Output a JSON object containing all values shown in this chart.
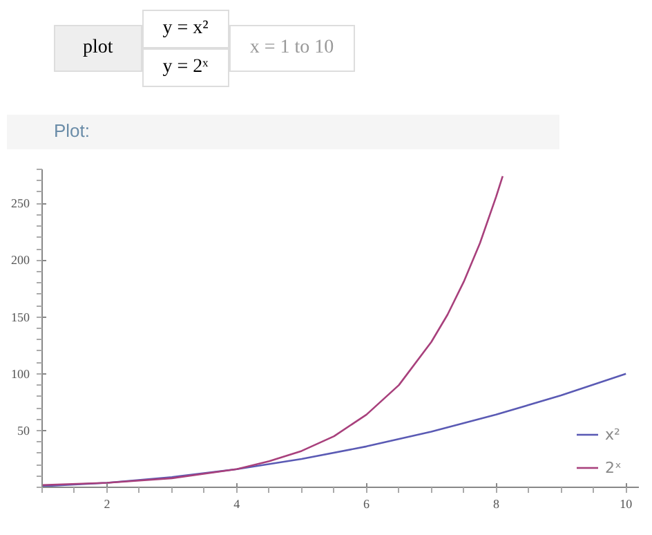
{
  "chart_data": {
    "type": "line",
    "title": "Plot:",
    "annotations": [
      "plot",
      "y = x²",
      "y = 2ˣ",
      "x = 1 to 10"
    ],
    "xlim": [
      1,
      10.2
    ],
    "ylim": [
      0,
      280
    ],
    "xticks": [
      2,
      4,
      6,
      8,
      10
    ],
    "yticks": [
      50,
      100,
      150,
      200,
      250
    ],
    "grid": false,
    "legend": "right",
    "marker": "none",
    "line_style": "solid",
    "series": [
      {
        "name": "x²",
        "color": "#5a5ab4",
        "x": [
          1,
          2,
          3,
          4,
          5,
          6,
          7,
          8,
          9,
          10
        ],
        "values": [
          1,
          4,
          9,
          16,
          25,
          36,
          49,
          64,
          81,
          100
        ]
      },
      {
        "name": "2ˣ",
        "color": "#a8407c",
        "x": [
          1,
          2,
          3,
          4,
          4.5,
          5,
          5.5,
          6,
          6.5,
          7,
          7.25,
          7.5,
          7.75,
          8,
          8.1
        ],
        "values": [
          2,
          4,
          8,
          16,
          23,
          32,
          45,
          64,
          90,
          128,
          152,
          181,
          215,
          256,
          274
        ]
      }
    ]
  }
}
